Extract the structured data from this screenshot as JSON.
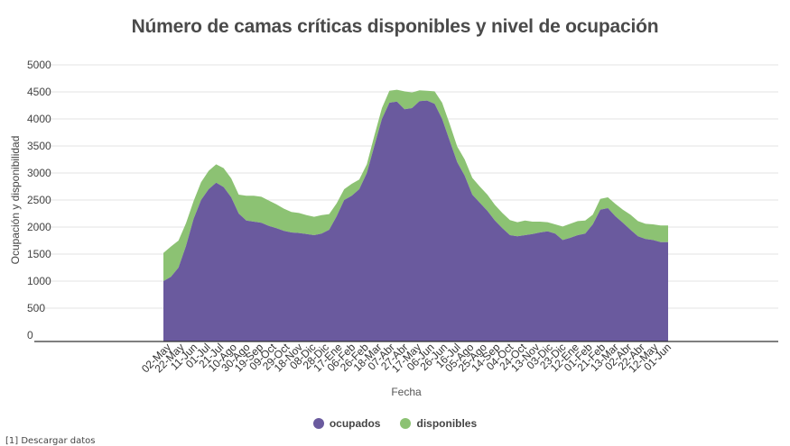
{
  "chart_data": {
    "type": "area",
    "title": "Número de camas críticas disponibles y nivel de ocupación",
    "xlabel": "Fecha",
    "ylabel": "Ocupación y disponibilidad",
    "ylim": [
      0,
      5000
    ],
    "yticks": [
      0,
      500,
      1000,
      1500,
      2000,
      2500,
      3000,
      3500,
      4000,
      4500,
      5000
    ],
    "x_tick_labels": [
      "02-May",
      "22-May",
      "11-Jun",
      "01-Jul",
      "21-Jul",
      "10-Ago",
      "30-Ago",
      "19-Sep",
      "09-Oct",
      "29-Oct",
      "18-Nov",
      "08-Dic",
      "28-Dic",
      "17-Ene",
      "06-Feb",
      "26-Feb",
      "18-Mar",
      "07-Abr",
      "27-Abr",
      "17-May",
      "06-Jun",
      "26-Jun",
      "16-Jul",
      "05-Ago",
      "25-Ago",
      "14-Sep",
      "04-Oct",
      "24-Oct",
      "13-Nov",
      "03-Dic",
      "23-Dic",
      "12-Ene",
      "01-Feb",
      "21-Feb",
      "13-Mar",
      "02-Abr",
      "22-Abr",
      "12-May",
      "01-Jun"
    ],
    "grid": true,
    "legend_position": "bottom",
    "series": [
      {
        "name": "ocupados",
        "color": "#6a5a9e",
        "values": [
          1000,
          1080,
          1250,
          1650,
          2150,
          2500,
          2700,
          2820,
          2740,
          2550,
          2250,
          2120,
          2100,
          2080,
          2020,
          1980,
          1930,
          1900,
          1890,
          1870,
          1850,
          1880,
          1950,
          2200,
          2500,
          2580,
          2700,
          3000,
          3500,
          4000,
          4300,
          4320,
          4180,
          4200,
          4330,
          4340,
          4280,
          4000,
          3600,
          3200,
          2950,
          2600,
          2450,
          2300,
          2120,
          1980,
          1850,
          1830,
          1850,
          1870,
          1900,
          1920,
          1880,
          1760,
          1800,
          1850,
          1880,
          2050,
          2320,
          2350,
          2200,
          2080,
          1950,
          1830,
          1780,
          1760,
          1720,
          1720
        ]
      },
      {
        "name": "disponibles",
        "color": "#8cc273",
        "values": [
          520,
          560,
          500,
          420,
          330,
          330,
          340,
          340,
          350,
          350,
          350,
          460,
          480,
          480,
          470,
          440,
          410,
          380,
          370,
          350,
          340,
          340,
          290,
          240,
          200,
          220,
          180,
          160,
          190,
          200,
          220,
          220,
          330,
          290,
          200,
          180,
          230,
          300,
          310,
          290,
          300,
          310,
          300,
          300,
          290,
          280,
          280,
          260,
          270,
          230,
          200,
          170,
          170,
          250,
          260,
          260,
          240,
          180,
          200,
          200,
          230,
          240,
          280,
          280,
          280,
          290,
          310,
          310
        ]
      }
    ]
  },
  "legend": {
    "items": [
      {
        "label": "ocupados",
        "color": "#6a5a9e"
      },
      {
        "label": "disponibles",
        "color": "#8cc273"
      }
    ]
  },
  "footer": {
    "text": "[1]  Descargar datos"
  }
}
